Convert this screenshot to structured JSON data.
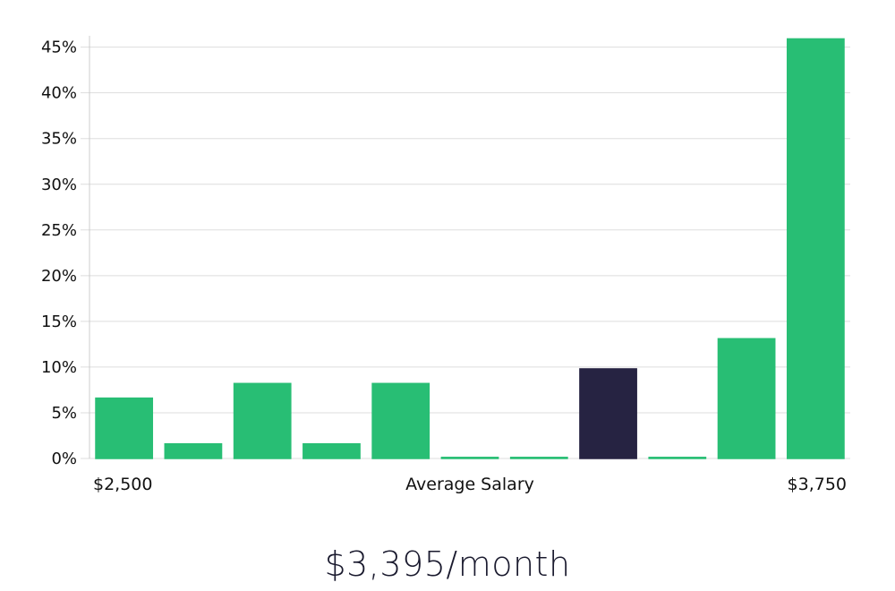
{
  "headline": "$3,395/month",
  "colors": {
    "bar": "#28be74",
    "highlight": "#262342",
    "grid": "#dddddd",
    "axis": "#cccccc",
    "text": "#111111"
  },
  "chart_data": {
    "type": "bar",
    "xlabel": "Average Salary",
    "x_start_label": "$2,500",
    "x_end_label": "$3,750",
    "ylabel": "",
    "y_tick_format": "percent",
    "ylim": [
      0,
      48
    ],
    "yticks": [
      0,
      5,
      10,
      15,
      20,
      25,
      30,
      35,
      40,
      45
    ],
    "grid": true,
    "legend": "none",
    "values": [
      6.6,
      1.6,
      8.2,
      1.6,
      8.2,
      0,
      0,
      9.8,
      0,
      13.1,
      45.9
    ],
    "highlight_index": 7
  }
}
